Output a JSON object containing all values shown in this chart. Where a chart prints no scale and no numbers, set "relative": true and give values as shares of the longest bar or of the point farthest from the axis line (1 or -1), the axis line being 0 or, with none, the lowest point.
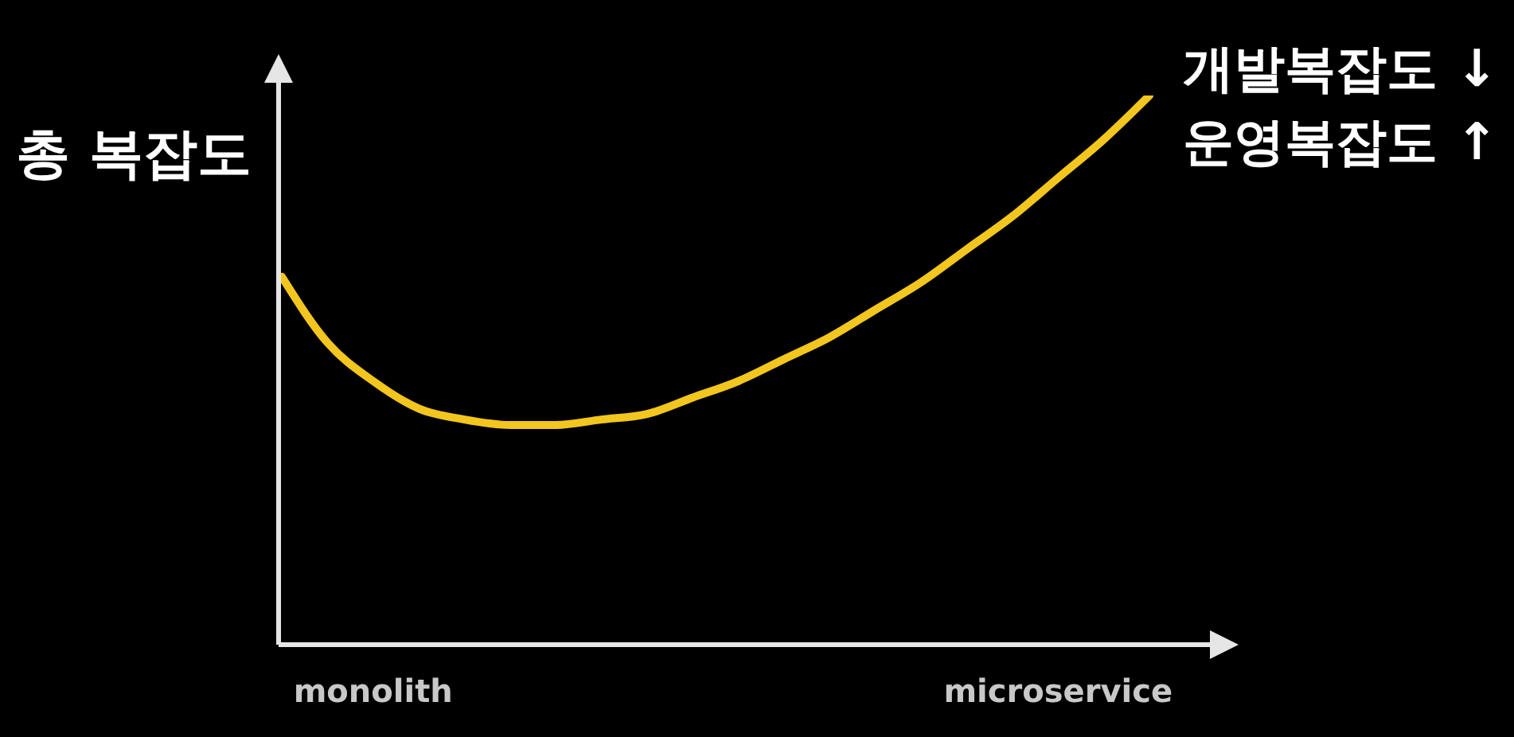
{
  "chart_data": {
    "type": "line",
    "relative": true,
    "ylabel": "총 복잡도",
    "annotations": [
      "개발복잡도 ↓",
      "운영복잡도 ↑"
    ],
    "categories": [
      null,
      null,
      "monolith",
      null,
      null,
      null,
      null,
      null,
      null,
      null,
      null,
      null,
      null,
      null,
      null,
      null,
      null,
      "microservice",
      null,
      null
    ],
    "series": [
      {
        "color": "#f2c61f",
        "values": [
          0.67,
          0.55,
          0.48,
          0.43,
          0.41,
          0.4,
          0.4,
          0.41,
          0.42,
          0.45,
          0.48,
          0.52,
          0.56,
          0.61,
          0.66,
          0.72,
          0.78,
          0.85,
          0.92,
          1.0
        ]
      }
    ],
    "marker": "none",
    "line_style": "solid"
  }
}
